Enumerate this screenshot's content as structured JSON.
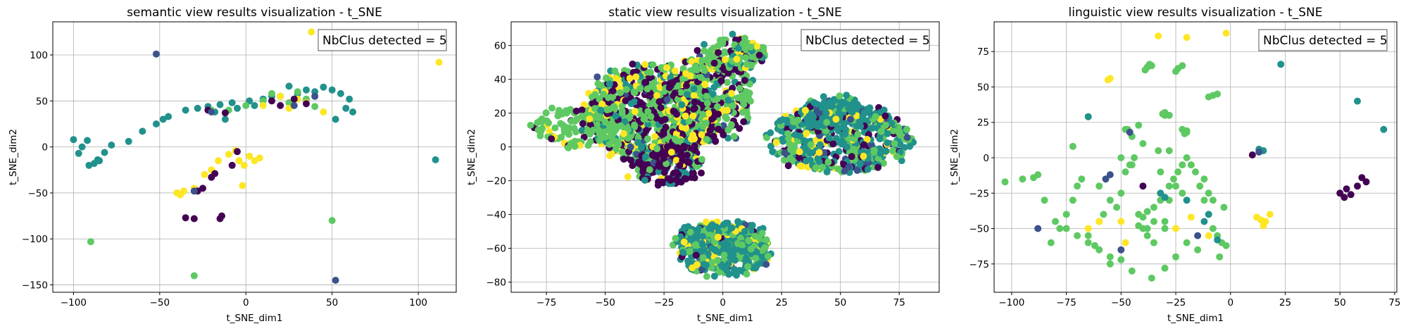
{
  "palette": [
    "#440154",
    "#3b528b",
    "#21918c",
    "#5ec962",
    "#fde725"
  ],
  "chart_data": [
    {
      "type": "scatter",
      "title": "semantic view results visualization - t_SNE",
      "xlabel": "t_SNE_dim1",
      "ylabel": "t_SNE_dim2",
      "xlim": [
        -112,
        122
      ],
      "ylim": [
        -158,
        136
      ],
      "xticks": [
        -100,
        -50,
        0,
        50,
        100
      ],
      "yticks": [
        -150,
        -100,
        -50,
        0,
        50,
        100
      ],
      "grid": true,
      "annotation": "NbClus detected = 5",
      "annotation_position": "top-right",
      "clusters": [
        {
          "c": 2,
          "x": [
            -100,
            -97,
            -92,
            -91,
            -88,
            -85,
            -82,
            -68,
            -60,
            -52,
            -48,
            -45,
            -35,
            -28,
            -22,
            -15,
            -8,
            2,
            10,
            20,
            30,
            40,
            50,
            55,
            60,
            58,
            62,
            52,
            45,
            35,
            25,
            15,
            5,
            -5,
            -12,
            -18,
            -95,
            -86,
            -78,
            110
          ],
          "y": [
            8,
            -7,
            7,
            -20,
            -18,
            -15,
            -6,
            6,
            17,
            25,
            30,
            33,
            40,
            42,
            44,
            46,
            48,
            50,
            52,
            55,
            58,
            60,
            62,
            58,
            52,
            42,
            38,
            30,
            65,
            62,
            66,
            55,
            45,
            42,
            30,
            38,
            0,
            -14,
            2,
            -14
          ]
        },
        {
          "c": 3,
          "x": [
            -90,
            50,
            -30,
            0,
            10,
            20,
            30,
            -20,
            25,
            40,
            35,
            15,
            -10
          ],
          "y": [
            -103,
            -80,
            -140,
            45,
            50,
            55,
            60,
            40,
            48,
            44,
            52,
            58,
            40
          ]
        },
        {
          "c": 4,
          "x": [
            112,
            38,
            -40,
            -36,
            -30,
            -24,
            -20,
            -16,
            -10,
            -6,
            -4,
            -2,
            8,
            2,
            -1,
            5,
            20,
            30,
            25,
            35,
            45,
            -38,
            10
          ],
          "y": [
            92,
            125,
            -50,
            -48,
            -45,
            -30,
            -25,
            -15,
            -8,
            -4,
            -15,
            -42,
            -12,
            -10,
            -20,
            -15,
            55,
            52,
            42,
            48,
            38,
            -52,
            45
          ]
        },
        {
          "c": 0,
          "x": [
            -35,
            -30,
            -28,
            -25,
            -15,
            -14,
            -5,
            -8,
            -20,
            -18,
            -22,
            -12,
            15,
            20,
            28,
            35
          ],
          "y": [
            -77,
            -78,
            -48,
            -45,
            -78,
            -75,
            -5,
            -20,
            -33,
            -29,
            40,
            37,
            50,
            45,
            52,
            47
          ]
        },
        {
          "c": 1,
          "x": [
            -52,
            52,
            -30,
            28,
            40,
            -20
          ],
          "y": [
            101,
            -145,
            -48,
            45,
            55,
            38
          ]
        }
      ]
    },
    {
      "type": "scatter",
      "title": "static view results visualization - t_SNE",
      "xlabel": "t_SNE_dim1",
      "ylabel": "t_SNE_dim2",
      "xlim": [
        -90,
        92
      ],
      "ylim": [
        -86,
        74
      ],
      "xticks": [
        -75,
        -50,
        -25,
        0,
        25,
        50,
        75
      ],
      "yticks": [
        -80,
        -60,
        -40,
        -20,
        0,
        20,
        40,
        60
      ],
      "grid": true,
      "annotation": "NbClus detected = 5",
      "annotation_position": "top-right",
      "regions": [
        {
          "cx": -30,
          "cy": 20,
          "rx": 28,
          "ry": 30,
          "mix": [
            0.28,
            0.02,
            0.1,
            0.45,
            0.15
          ],
          "n": 700
        },
        {
          "cx": -58,
          "cy": 12,
          "rx": 22,
          "ry": 12,
          "mix": [
            0.08,
            0,
            0.05,
            0.8,
            0.07
          ],
          "n": 180
        },
        {
          "cx": -5,
          "cy": 30,
          "rx": 18,
          "ry": 28,
          "mix": [
            0.3,
            0.02,
            0.08,
            0.45,
            0.15
          ],
          "n": 300
        },
        {
          "cx": 5,
          "cy": 55,
          "rx": 14,
          "ry": 9,
          "mix": [
            0.15,
            0.03,
            0.05,
            0.6,
            0.17
          ],
          "n": 120
        },
        {
          "cx": -25,
          "cy": -10,
          "rx": 16,
          "ry": 12,
          "mix": [
            0.6,
            0.05,
            0.15,
            0.1,
            0.1
          ],
          "n": 200
        },
        {
          "cx": 50,
          "cy": 5,
          "rx": 30,
          "ry": 20,
          "mix": [
            0.15,
            0.05,
            0.45,
            0.25,
            0.1
          ],
          "n": 500
        },
        {
          "cx": 48,
          "cy": 20,
          "rx": 14,
          "ry": 10,
          "mix": [
            0.05,
            0.05,
            0.75,
            0.1,
            0.05
          ],
          "n": 150
        },
        {
          "cx": 0,
          "cy": -60,
          "rx": 20,
          "ry": 16,
          "mix": [
            0.03,
            0.02,
            0.55,
            0.25,
            0.15
          ],
          "n": 450
        }
      ]
    },
    {
      "type": "scatter",
      "title": "linguistic view results visualization - t_SNE",
      "xlabel": "t_SNE_dim1",
      "ylabel": "t_SNE_dim2",
      "xlim": [
        -108,
        76
      ],
      "ylim": [
        -95,
        96
      ],
      "xticks": [
        -100,
        -75,
        -50,
        -25,
        0,
        25,
        50,
        75
      ],
      "yticks": [
        -75,
        -50,
        -25,
        0,
        25,
        50,
        75
      ],
      "grid": true,
      "annotation": "NbClus detected = 5",
      "annotation_position": "top-right",
      "clusters": [
        {
          "c": 3,
          "x": [
            -103,
            -95,
            -90,
            -88,
            -82,
            -78,
            -75,
            -72,
            -70,
            -68,
            -65,
            -62,
            -60,
            -58,
            -55,
            -52,
            -50,
            -48,
            -46,
            -44,
            -42,
            -40,
            -38,
            -35,
            -32,
            -30,
            -28,
            -26,
            -24,
            -22,
            -20,
            -18,
            -16,
            -14,
            -12,
            -10,
            -8,
            -6,
            -4,
            -2,
            -20,
            -22,
            -30,
            -33,
            -28,
            -40,
            -42,
            -45,
            -48,
            -50,
            -55,
            -60,
            -65,
            -70,
            -80,
            -85,
            -75,
            -45,
            -36,
            -30,
            -25,
            -35,
            -38,
            -40,
            -30,
            -20,
            -15,
            -5,
            -3,
            -8,
            -10,
            -12,
            -18,
            -25,
            -32,
            -45,
            -50,
            -55,
            -60,
            -38,
            -42,
            -35,
            -30,
            -28,
            -22
          ],
          "y": [
            -17,
            -15,
            -14,
            -12,
            -60,
            -50,
            -40,
            -30,
            -20,
            -15,
            -55,
            -62,
            -45,
            -40,
            -75,
            -35,
            -25,
            -10,
            -5,
            0,
            -48,
            -42,
            -38,
            -35,
            -30,
            -28,
            -20,
            -15,
            -10,
            -5,
            0,
            -5,
            -10,
            -20,
            -30,
            -40,
            -50,
            -55,
            -60,
            -62,
            18,
            20,
            30,
            5,
            5,
            10,
            23,
            15,
            20,
            -72,
            -70,
            -65,
            -60,
            -55,
            -45,
            -30,
            -50,
            -80,
            -85,
            -78,
            -70,
            -60,
            -55,
            -50,
            -45,
            -60,
            -65,
            -70,
            -35,
            -30,
            -25,
            -15,
            -5,
            -20,
            -10,
            -5,
            0,
            -30,
            -20,
            -50,
            -40,
            -45,
            -50,
            -30,
            -25
          ]
        },
        {
          "c": 3,
          "x": [
            -38,
            -37,
            -39,
            -36,
            -24,
            -22,
            -25,
            -8,
            -6,
            -10,
            -28,
            -30,
            -31,
            -20,
            -21,
            -47,
            -72,
            -65
          ],
          "y": [
            64,
            66,
            62,
            65,
            63,
            65,
            61,
            44,
            45,
            43,
            30,
            32,
            31,
            19,
            17,
            20,
            8,
            29
          ]
        },
        {
          "c": 2,
          "x": [
            -65,
            -32,
            -30,
            -20,
            -10,
            -12,
            -6,
            13,
            15,
            23,
            58,
            70
          ],
          "y": [
            29,
            -25,
            -28,
            -30,
            -40,
            -45,
            -58,
            6,
            5,
            66,
            40,
            20
          ]
        },
        {
          "c": 4,
          "x": [
            -56,
            -55,
            -33,
            -20,
            -18,
            -25,
            -10,
            -2,
            -60,
            -65,
            -50,
            -48,
            12,
            14,
            16,
            15,
            18
          ],
          "y": [
            55,
            56,
            86,
            85,
            -42,
            -50,
            -55,
            88,
            -45,
            -50,
            -45,
            -60,
            -42,
            -44,
            -45,
            -48,
            -40
          ]
        },
        {
          "c": 0,
          "x": [
            10,
            50,
            52,
            53,
            55,
            58,
            60,
            62,
            -40
          ],
          "y": [
            2,
            -25,
            -28,
            -22,
            -26,
            -20,
            -14,
            -17,
            -20
          ]
        },
        {
          "c": 1,
          "x": [
            -88,
            -50,
            -55,
            -57,
            -15,
            13,
            -46
          ],
          "y": [
            -50,
            -65,
            -12,
            -15,
            -55,
            4,
            18
          ]
        }
      ]
    }
  ]
}
